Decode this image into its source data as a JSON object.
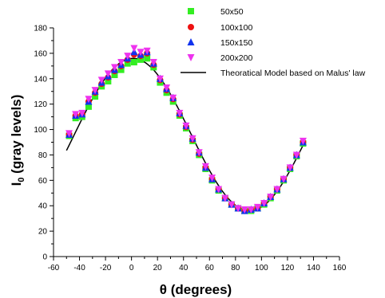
{
  "chart_data": {
    "type": "scatter",
    "title": "",
    "xlabel": "θ (degrees)",
    "ylabel_main": "I",
    "ylabel_sub": "0",
    "ylabel_rest": " (gray levels)",
    "xlim": [
      -60,
      160
    ],
    "ylim": [
      0,
      180
    ],
    "x_ticks": [
      -60,
      -40,
      -20,
      0,
      20,
      40,
      60,
      80,
      100,
      120,
      140,
      160
    ],
    "y_ticks": [
      0,
      20,
      40,
      60,
      80,
      100,
      120,
      140,
      160,
      180
    ],
    "x_tick_labels": [
      "-60",
      "-40",
      "-20",
      "0",
      "20",
      "40",
      "60",
      "80",
      "100",
      "120",
      "140",
      "160"
    ],
    "y_tick_labels": [
      "0",
      "20",
      "40",
      "60",
      "80",
      "100",
      "120",
      "140",
      "160",
      "180"
    ],
    "x_minor_step": 10,
    "y_minor_step": 10,
    "grid": false,
    "legend_position": "top-right",
    "x": [
      -48,
      -43,
      -38,
      -33,
      -28,
      -23,
      -18,
      -13,
      -8,
      -3,
      2,
      7,
      12,
      17,
      22,
      27,
      32,
      37,
      42,
      47,
      52,
      57,
      62,
      67,
      72,
      77,
      82,
      87,
      92,
      97,
      102,
      107,
      112,
      117,
      122,
      127,
      132
    ],
    "series": [
      {
        "name": "50x50",
        "marker": "square",
        "color": "#33ee22",
        "values": [
          95,
          109,
          110,
          118,
          126,
          134,
          138,
          143,
          147,
          152,
          153,
          155,
          156,
          149,
          137,
          129,
          122,
          111,
          101,
          91,
          80,
          69,
          60,
          52,
          46,
          41,
          38,
          36,
          36,
          38,
          41,
          46,
          52,
          60,
          69,
          79,
          89
        ]
      },
      {
        "name": "100x100",
        "marker": "circle",
        "color": "#ee1111",
        "values": [
          96,
          111,
          112,
          122,
          129,
          136,
          141,
          146,
          150,
          155,
          159,
          158,
          160,
          151,
          139,
          131,
          124,
          112,
          102,
          92,
          81,
          70,
          61,
          53,
          46,
          41,
          38,
          36,
          37,
          38,
          42,
          47,
          53,
          61,
          70,
          80,
          90
        ]
      },
      {
        "name": "150x150",
        "marker": "triangle-up",
        "color": "#1133ee",
        "values": [
          96,
          111,
          112,
          122,
          130,
          137,
          142,
          147,
          151,
          156,
          161,
          159,
          161,
          152,
          140,
          132,
          125,
          113,
          103,
          93,
          82,
          70,
          61,
          53,
          46,
          41,
          38,
          36,
          37,
          38,
          42,
          47,
          53,
          61,
          70,
          80,
          90
        ]
      },
      {
        "name": "200x200",
        "marker": "triangle-down",
        "color": "#ee33ee",
        "values": [
          97,
          112,
          113,
          124,
          131,
          139,
          144,
          149,
          153,
          158,
          164,
          161,
          162,
          153,
          140,
          133,
          125,
          113,
          103,
          93,
          82,
          71,
          62,
          53,
          46,
          41,
          38,
          37,
          37,
          39,
          42,
          47,
          53,
          61,
          70,
          80,
          91
        ]
      }
    ],
    "model": {
      "name": "Theoratical Model based on Malus' law",
      "type": "line",
      "color": "#000000",
      "x_range": [
        -50,
        132
      ],
      "formula": "I0 = 36 + 120 * cos^2(theta - 1)",
      "min_level": 36,
      "amplitude": 120,
      "peak_angle": 1
    }
  }
}
